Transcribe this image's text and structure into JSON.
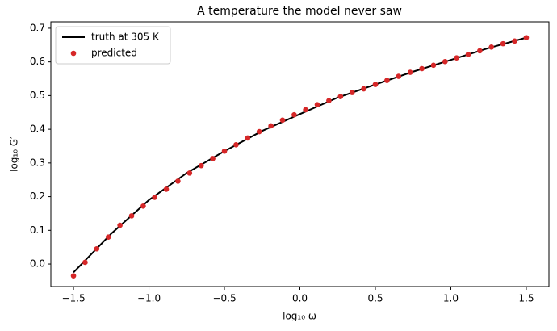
{
  "chart_data": {
    "type": "line",
    "title": "A temperature the model never saw",
    "x_label": "log₁₀ ω",
    "y_label": "log₁₀ G′",
    "xlim": [
      -1.65,
      1.65
    ],
    "ylim": [
      -0.067,
      0.719
    ],
    "xticks": [
      {
        "value": -1.5,
        "label": "−1.5"
      },
      {
        "value": -1.0,
        "label": "−1.0"
      },
      {
        "value": -0.5,
        "label": "−0.5"
      },
      {
        "value": 0,
        "label": "0.0"
      },
      0.5,
      {
        "value": 1,
        "label": "1.0"
      },
      1.5
    ],
    "yticks": [
      {
        "value": 0,
        "label": "0.0"
      },
      0.1,
      0.2,
      0.3,
      0.4,
      0.5,
      0.6,
      0.7
    ],
    "legend": "upper left",
    "grid": false,
    "series": [
      {
        "name": "truth at 305 K",
        "type": "line",
        "color": "#000000",
        "x": [
          -1.5,
          -1.25,
          -1.0,
          -0.75,
          -0.5,
          -0.25,
          0,
          0.25,
          0.5,
          0.75,
          1.0,
          1.25,
          1.5
        ],
        "values": [
          -0.025,
          0.09,
          0.19,
          0.27,
          0.335,
          0.395,
          0.445,
          0.494,
          0.533,
          0.571,
          0.606,
          0.641,
          0.672
        ]
      },
      {
        "name": "predicted",
        "type": "scatter",
        "color": "#d62728",
        "x": [
          -1.5,
          -1.423,
          -1.346,
          -1.269,
          -1.192,
          -1.115,
          -1.038,
          -0.962,
          -0.885,
          -0.808,
          -0.731,
          -0.654,
          -0.577,
          -0.5,
          -0.423,
          -0.346,
          -0.269,
          -0.192,
          -0.115,
          -0.038,
          0.038,
          0.115,
          0.192,
          0.269,
          0.346,
          0.423,
          0.5,
          0.577,
          0.654,
          0.731,
          0.808,
          0.885,
          0.962,
          1.038,
          1.115,
          1.192,
          1.269,
          1.346,
          1.423,
          1.5
        ],
        "values": [
          -0.035,
          0.005,
          0.045,
          0.08,
          0.115,
          0.143,
          0.172,
          0.198,
          0.222,
          0.246,
          0.27,
          0.292,
          0.313,
          0.335,
          0.354,
          0.374,
          0.393,
          0.41,
          0.427,
          0.443,
          0.458,
          0.473,
          0.485,
          0.497,
          0.509,
          0.52,
          0.533,
          0.545,
          0.557,
          0.569,
          0.58,
          0.59,
          0.601,
          0.612,
          0.622,
          0.633,
          0.644,
          0.654,
          0.662,
          0.672
        ]
      }
    ]
  }
}
